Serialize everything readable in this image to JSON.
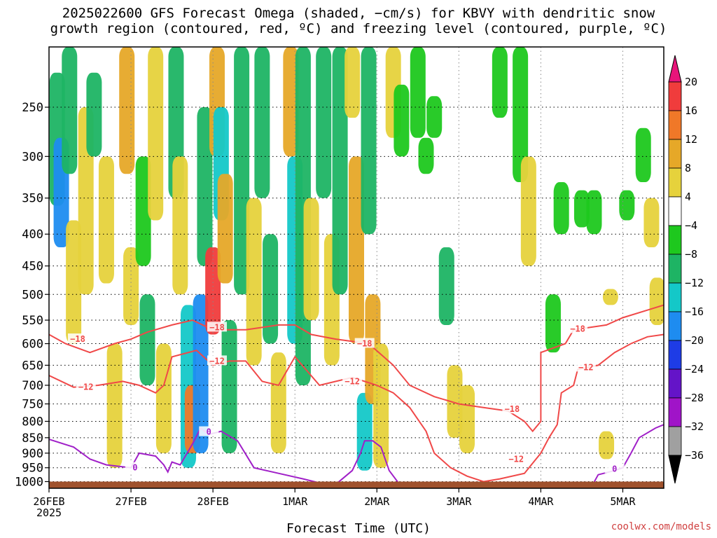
{
  "title_line1": "2025022600 GFS Forecast Omega (shaded, −cm/s) for KBVY with dendritic snow",
  "title_line2": "growth region (contoured, red, ºC) and freezing level (contoured, purple, ºC)",
  "credit": "coolwx.com/models",
  "chart_data": {
    "type": "heatmap",
    "title": "2025022600 GFS Forecast Omega (shaded, −cm/s) for KBVY with dendritic snow growth region (contoured, red, ºC) and freezing level (contoured, purple, ºC)",
    "xlabel": "Forecast Time (UTC)",
    "ylabel": "",
    "x_ticks": [
      "26FEB",
      "27FEB",
      "28FEB",
      "1MAR",
      "2MAR",
      "3MAR",
      "4MAR",
      "5MAR"
    ],
    "x_start_year": "2025",
    "xlim_days": [
      0,
      7.5
    ],
    "y_ticks": [
      250,
      300,
      350,
      400,
      450,
      500,
      550,
      600,
      650,
      700,
      750,
      800,
      850,
      900,
      950,
      1000
    ],
    "y_scale": "log-pressure, reversed",
    "ylim_hpa": [
      200,
      1025
    ],
    "grid": true,
    "colorbar": {
      "labels": [
        "20",
        "16",
        "12",
        "8",
        "4",
        "−4",
        "−8",
        "−12",
        "−16",
        "−20",
        "−24",
        "−28",
        "−32",
        "−36"
      ],
      "colors": [
        "#e8147a",
        "#f03c3c",
        "#f07828",
        "#e6a828",
        "#e6d23c",
        "#ffffff",
        "#1ec81e",
        "#1eb464",
        "#14c8c8",
        "#1e8cf0",
        "#1e3ce6",
        "#6414c8",
        "#a014c8",
        "#a0a0a0",
        "#000000"
      ]
    },
    "omega_cells": [
      {
        "t": 0.1,
        "p0": 220,
        "p1": 360,
        "v": -10
      },
      {
        "t": 0.15,
        "p0": 280,
        "p1": 420,
        "v": -16
      },
      {
        "t": 0.25,
        "p0": 200,
        "p1": 320,
        "v": -8
      },
      {
        "t": 0.3,
        "p0": 380,
        "p1": 600,
        "v": 6
      },
      {
        "t": 0.45,
        "p0": 250,
        "p1": 500,
        "v": 5
      },
      {
        "t": 0.55,
        "p0": 220,
        "p1": 300,
        "v": -8
      },
      {
        "t": 0.7,
        "p0": 300,
        "p1": 480,
        "v": 6
      },
      {
        "t": 0.8,
        "p0": 600,
        "p1": 950,
        "v": 5
      },
      {
        "t": 0.95,
        "p0": 200,
        "p1": 320,
        "v": 8
      },
      {
        "t": 1.0,
        "p0": 420,
        "p1": 560,
        "v": 5
      },
      {
        "t": 1.15,
        "p0": 300,
        "p1": 450,
        "v": -6
      },
      {
        "t": 1.2,
        "p0": 500,
        "p1": 700,
        "v": -8
      },
      {
        "t": 1.3,
        "p0": 200,
        "p1": 380,
        "v": 6
      },
      {
        "t": 1.4,
        "p0": 600,
        "p1": 900,
        "v": 6
      },
      {
        "t": 1.55,
        "p0": 200,
        "p1": 350,
        "v": -8
      },
      {
        "t": 1.6,
        "p0": 300,
        "p1": 500,
        "v": 5
      },
      {
        "t": 1.7,
        "p0": 520,
        "p1": 950,
        "v": -14
      },
      {
        "t": 1.75,
        "p0": 700,
        "p1": 900,
        "v": 12
      },
      {
        "t": 1.85,
        "p0": 500,
        "p1": 900,
        "v": -18
      },
      {
        "t": 1.9,
        "p0": 250,
        "p1": 450,
        "v": -8
      },
      {
        "t": 2.0,
        "p0": 420,
        "p1": 580,
        "v": 16
      },
      {
        "t": 2.05,
        "p0": 200,
        "p1": 300,
        "v": 8
      },
      {
        "t": 2.1,
        "p0": 250,
        "p1": 380,
        "v": -12
      },
      {
        "t": 2.15,
        "p0": 320,
        "p1": 480,
        "v": 8
      },
      {
        "t": 2.2,
        "p0": 550,
        "p1": 900,
        "v": -10
      },
      {
        "t": 2.35,
        "p0": 200,
        "p1": 500,
        "v": -8
      },
      {
        "t": 2.5,
        "p0": 350,
        "p1": 650,
        "v": 6
      },
      {
        "t": 2.6,
        "p0": 200,
        "p1": 350,
        "v": -8
      },
      {
        "t": 2.7,
        "p0": 400,
        "p1": 600,
        "v": -10
      },
      {
        "t": 2.8,
        "p0": 620,
        "p1": 900,
        "v": 6
      },
      {
        "t": 2.95,
        "p0": 200,
        "p1": 300,
        "v": 8
      },
      {
        "t": 3.0,
        "p0": 300,
        "p1": 600,
        "v": -14
      },
      {
        "t": 3.1,
        "p0": 200,
        "p1": 700,
        "v": -10
      },
      {
        "t": 3.2,
        "p0": 350,
        "p1": 550,
        "v": 6
      },
      {
        "t": 3.35,
        "p0": 200,
        "p1": 350,
        "v": -8
      },
      {
        "t": 3.45,
        "p0": 400,
        "p1": 650,
        "v": 6
      },
      {
        "t": 3.55,
        "p0": 200,
        "p1": 500,
        "v": -10
      },
      {
        "t": 3.7,
        "p0": 200,
        "p1": 260,
        "v": 6
      },
      {
        "t": 3.75,
        "p0": 300,
        "p1": 600,
        "v": 8
      },
      {
        "t": 3.85,
        "p0": 720,
        "p1": 960,
        "v": -12
      },
      {
        "t": 3.9,
        "p0": 200,
        "p1": 400,
        "v": -8
      },
      {
        "t": 3.95,
        "p0": 500,
        "p1": 750,
        "v": 8
      },
      {
        "t": 4.05,
        "p0": 600,
        "p1": 950,
        "v": 6
      },
      {
        "t": 4.2,
        "p0": 200,
        "p1": 280,
        "v": 6
      },
      {
        "t": 4.3,
        "p0": 230,
        "p1": 300,
        "v": -6
      },
      {
        "t": 4.5,
        "p0": 200,
        "p1": 280,
        "v": -6
      },
      {
        "t": 4.6,
        "p0": 280,
        "p1": 320,
        "v": -6
      },
      {
        "t": 4.7,
        "p0": 240,
        "p1": 280,
        "v": -6
      },
      {
        "t": 4.85,
        "p0": 420,
        "p1": 560,
        "v": -10
      },
      {
        "t": 4.95,
        "p0": 650,
        "p1": 850,
        "v": 5
      },
      {
        "t": 5.1,
        "p0": 700,
        "p1": 900,
        "v": 6
      },
      {
        "t": 5.5,
        "p0": 200,
        "p1": 260,
        "v": -6
      },
      {
        "t": 5.75,
        "p0": 200,
        "p1": 330,
        "v": -6
      },
      {
        "t": 5.85,
        "p0": 300,
        "p1": 450,
        "v": 5
      },
      {
        "t": 6.15,
        "p0": 500,
        "p1": 620,
        "v": -6
      },
      {
        "t": 6.25,
        "p0": 330,
        "p1": 400,
        "v": -6
      },
      {
        "t": 6.5,
        "p0": 340,
        "p1": 390,
        "v": -6
      },
      {
        "t": 6.65,
        "p0": 340,
        "p1": 400,
        "v": -6
      },
      {
        "t": 6.8,
        "p0": 830,
        "p1": 920,
        "v": 5
      },
      {
        "t": 6.85,
        "p0": 490,
        "p1": 520,
        "v": 5
      },
      {
        "t": 7.05,
        "p0": 340,
        "p1": 380,
        "v": -6
      },
      {
        "t": 7.25,
        "p0": 270,
        "p1": 330,
        "v": -6
      },
      {
        "t": 7.35,
        "p0": 350,
        "p1": 420,
        "v": 5
      },
      {
        "t": 7.42,
        "p0": 470,
        "p1": 560,
        "v": 6
      }
    ],
    "contours": [
      {
        "name": "-18",
        "color": "#f04848",
        "points": [
          [
            0,
            580
          ],
          [
            0.2,
            600
          ],
          [
            0.5,
            620
          ],
          [
            0.8,
            600
          ],
          [
            1.0,
            590
          ],
          [
            1.2,
            575
          ],
          [
            1.5,
            560
          ],
          [
            1.75,
            550
          ],
          [
            2.0,
            570
          ],
          [
            2.4,
            570
          ],
          [
            2.8,
            560
          ],
          [
            3.0,
            560
          ],
          [
            3.2,
            580
          ],
          [
            3.5,
            590
          ],
          [
            3.9,
            600
          ],
          [
            4.2,
            650
          ],
          [
            4.4,
            700
          ],
          [
            4.7,
            730
          ],
          [
            5.0,
            750
          ],
          [
            5.3,
            760
          ],
          [
            5.6,
            770
          ],
          [
            5.8,
            800
          ],
          [
            5.9,
            830
          ],
          [
            6.0,
            800
          ],
          [
            6.0,
            620
          ],
          [
            6.3,
            600
          ],
          [
            6.4,
            570
          ],
          [
            6.8,
            560
          ],
          [
            7.0,
            545
          ],
          [
            7.3,
            530
          ],
          [
            7.5,
            520
          ]
        ],
        "labels": [
          [
            0.35,
            590
          ],
          [
            2.05,
            565
          ],
          [
            3.85,
            600
          ],
          [
            5.65,
            765
          ],
          [
            6.45,
            568
          ]
        ]
      },
      {
        "name": "-12",
        "color": "#f04848",
        "points": [
          [
            0,
            675
          ],
          [
            0.3,
            705
          ],
          [
            0.6,
            700
          ],
          [
            0.9,
            690
          ],
          [
            1.1,
            700
          ],
          [
            1.3,
            720
          ],
          [
            1.4,
            700
          ],
          [
            1.5,
            630
          ],
          [
            1.8,
            615
          ],
          [
            2.0,
            650
          ],
          [
            2.2,
            640
          ],
          [
            2.4,
            640
          ],
          [
            2.6,
            690
          ],
          [
            2.8,
            700
          ],
          [
            3.0,
            630
          ],
          [
            3.3,
            700
          ],
          [
            3.5,
            690
          ],
          [
            3.7,
            680
          ],
          [
            4.0,
            700
          ],
          [
            4.2,
            720
          ],
          [
            4.4,
            760
          ],
          [
            4.6,
            830
          ],
          [
            4.7,
            900
          ],
          [
            4.9,
            950
          ],
          [
            5.1,
            980
          ],
          [
            5.3,
            1000
          ],
          [
            5.5,
            990
          ],
          [
            5.8,
            970
          ],
          [
            6.0,
            900
          ],
          [
            6.1,
            850
          ],
          [
            6.2,
            810
          ],
          [
            6.25,
            720
          ],
          [
            6.4,
            700
          ],
          [
            6.45,
            660
          ],
          [
            6.7,
            650
          ],
          [
            6.9,
            620
          ],
          [
            7.1,
            600
          ],
          [
            7.3,
            585
          ],
          [
            7.5,
            580
          ]
        ],
        "labels": [
          [
            0.45,
            705
          ],
          [
            2.05,
            640
          ],
          [
            3.7,
            690
          ],
          [
            5.7,
            920
          ],
          [
            6.55,
            655
          ]
        ]
      },
      {
        "name": "0",
        "color": "#a020c8",
        "points": [
          [
            0,
            855
          ],
          [
            0.3,
            880
          ],
          [
            0.5,
            920
          ],
          [
            0.7,
            940
          ],
          [
            1.0,
            950
          ],
          [
            1.1,
            900
          ],
          [
            1.3,
            910
          ],
          [
            1.4,
            940
          ],
          [
            1.45,
            965
          ],
          [
            1.5,
            930
          ],
          [
            1.6,
            940
          ],
          [
            1.75,
            870
          ],
          [
            1.85,
            820
          ],
          [
            1.95,
            840
          ],
          [
            2.1,
            830
          ],
          [
            2.3,
            860
          ],
          [
            2.5,
            950
          ],
          [
            2.8,
            970
          ],
          [
            3.1,
            990
          ],
          [
            3.5,
            1020
          ]
        ],
        "labels": [
          [
            1.05,
            950
          ],
          [
            1.95,
            832
          ]
        ]
      },
      {
        "name": "0b",
        "color": "#a020c8",
        "points": [
          [
            3.5,
            1010
          ],
          [
            3.7,
            960
          ],
          [
            3.8,
            900
          ],
          [
            3.85,
            860
          ],
          [
            3.95,
            860
          ],
          [
            4.05,
            880
          ],
          [
            4.15,
            960
          ],
          [
            4.3,
            1020
          ]
        ],
        "labels": []
      },
      {
        "name": "0c",
        "color": "#a020c8",
        "points": [
          [
            6.6,
            1030
          ],
          [
            6.7,
            975
          ],
          [
            6.9,
            960
          ],
          [
            7.0,
            950
          ],
          [
            7.1,
            900
          ],
          [
            7.2,
            850
          ],
          [
            7.4,
            820
          ],
          [
            7.5,
            810
          ]
        ],
        "labels": [
          [
            6.9,
            955
          ]
        ]
      }
    ],
    "terrain_p_hpa": 1000
  }
}
